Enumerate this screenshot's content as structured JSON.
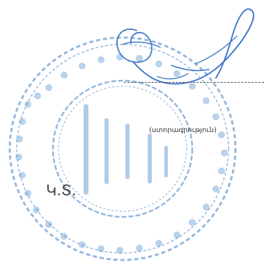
{
  "document": {
    "signature_caption": "(ստորագրություն)",
    "seal_label": "Կ.Տ."
  },
  "colors": {
    "stamp_ink": "#3b7fc4",
    "signature_ink": "#3f78c8",
    "text": "#333333"
  },
  "stamp": {
    "kind": "round-organization-seal",
    "legible": false
  }
}
